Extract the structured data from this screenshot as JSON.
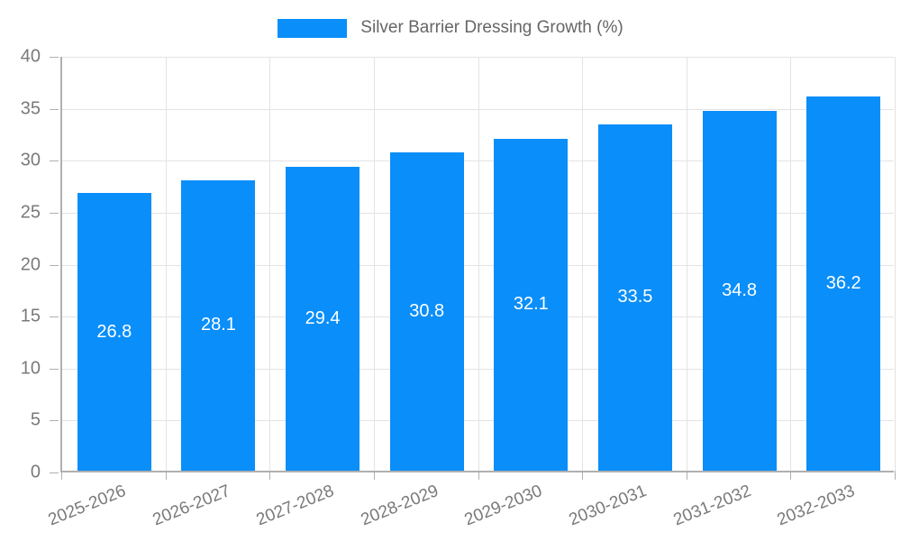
{
  "legend": {
    "label": "Silver Barrier Dressing Growth (%)"
  },
  "chart_data": {
    "type": "bar",
    "title": "Silver Barrier Dressing Growth (%)",
    "categories": [
      "2025-2026",
      "2026-2027",
      "2027-2028",
      "2028-2029",
      "2029-2030",
      "2030-2031",
      "2031-2032",
      "2032-2033"
    ],
    "values": [
      26.8,
      28.1,
      29.4,
      30.8,
      32.1,
      33.5,
      34.8,
      36.2
    ],
    "value_labels": [
      "26.8",
      "28.1",
      "29.4",
      "30.8",
      "32.1",
      "33.5",
      "34.8",
      "36.2"
    ],
    "xlabel": "",
    "ylabel": "",
    "ylim": [
      0,
      40
    ],
    "yticks": [
      0,
      5,
      10,
      15,
      20,
      25,
      30,
      35,
      40
    ],
    "grid": true,
    "legend_position": "top",
    "value_label_position": "middle-of-bar"
  },
  "colors": {
    "bar": "#0a8ef9",
    "grid": "#e3e3e3",
    "axis": "#b0b0b0",
    "tick_text": "#7a7a7a",
    "legend_text": "#666666",
    "value_text": "#ffffff",
    "background": "#ffffff"
  }
}
